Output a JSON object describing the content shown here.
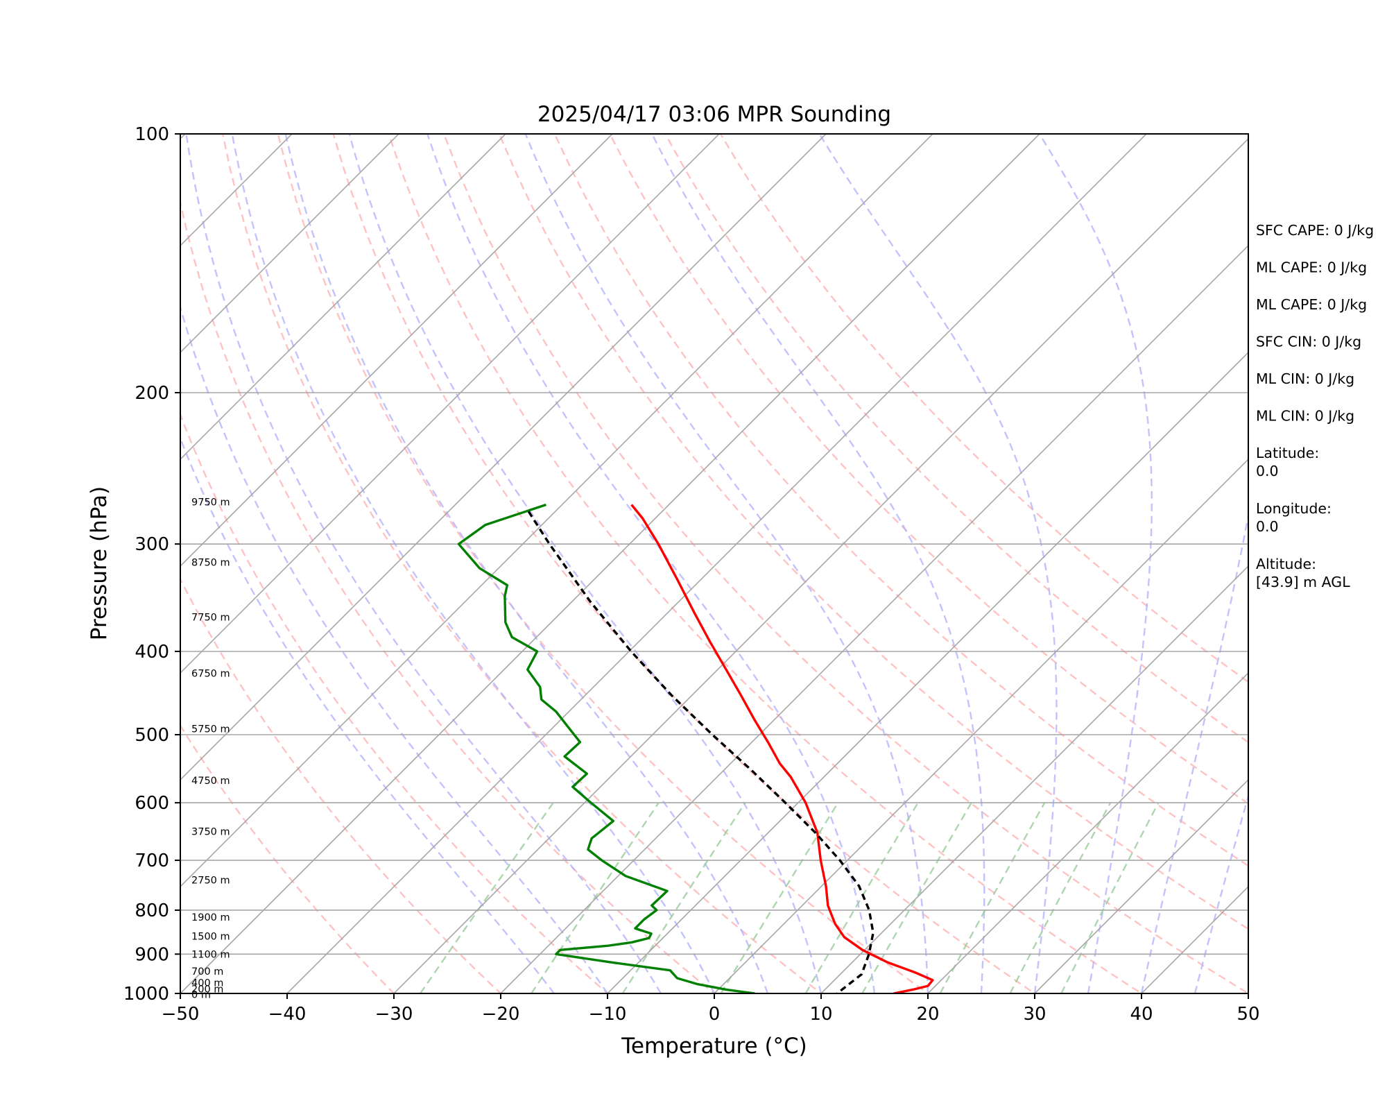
{
  "colors": {
    "temperature": "#ff0000",
    "dewpoint": "#008000",
    "parcel": "#000000",
    "isotherm": "#a6a6a6",
    "isobar": "#a6a6a6",
    "dry_adiabat": "#ffb3b3",
    "moist_adiabat": "#b3b3ff",
    "mixing_ratio": "#99cc99"
  },
  "chart_data": {
    "type": "line",
    "title": "2025/04/17 03:06 MPR Sounding",
    "xlabel": "Temperature (°C)",
    "ylabel": "Pressure (hPa)",
    "xlim": [
      -50,
      50
    ],
    "ylim": [
      1000,
      100
    ],
    "y_scale": "log",
    "skew": true,
    "grid": true,
    "x_ticks": [
      -50,
      -40,
      -30,
      -20,
      -10,
      0,
      10,
      20,
      30,
      40,
      50
    ],
    "x_tick_labels": [
      "−50",
      "−40",
      "−30",
      "−20",
      "−10",
      "0",
      "10",
      "20",
      "30",
      "40",
      "50"
    ],
    "y_ticks": [
      1000,
      900,
      800,
      700,
      600,
      500,
      400,
      300,
      200,
      100
    ],
    "y_tick_labels": [
      "1000",
      "900",
      "800",
      "700",
      "600",
      "500",
      "400",
      "300",
      "200",
      "100"
    ],
    "height_labels": [
      {
        "text": "9750 m",
        "p": 268
      },
      {
        "text": "8750 m",
        "p": 315
      },
      {
        "text": "7750 m",
        "p": 365
      },
      {
        "text": "6750 m",
        "p": 424
      },
      {
        "text": "5750 m",
        "p": 492
      },
      {
        "text": "4750 m",
        "p": 565
      },
      {
        "text": "3750 m",
        "p": 648
      },
      {
        "text": "2750 m",
        "p": 738
      },
      {
        "text": "1900 m",
        "p": 815
      },
      {
        "text": "1500 m",
        "p": 858
      },
      {
        "text": "1100 m",
        "p": 900
      },
      {
        "text": "700 m",
        "p": 942
      },
      {
        "text": "400 m",
        "p": 972
      },
      {
        "text": "200 m",
        "p": 988
      },
      {
        "text": "0 m",
        "p": 1003
      }
    ],
    "series": [
      {
        "name": "",
        "role": "temperature",
        "style": "solid",
        "p": [
          270,
          280,
          300,
          330,
          360,
          390,
          420,
          450,
          480,
          510,
          540,
          560,
          600,
          650,
          700,
          750,
          790,
          830,
          860,
          890,
          920,
          945,
          965,
          980,
          990,
          1000
        ],
        "t": [
          -53.5,
          -51.2,
          -47.3,
          -42.2,
          -37.6,
          -33.3,
          -29.2,
          -25.4,
          -21.9,
          -18.5,
          -15.4,
          -13.1,
          -9.3,
          -5.4,
          -2.5,
          0.4,
          2.4,
          4.8,
          6.9,
          9.8,
          13.3,
          16.8,
          19.2,
          19.3,
          18.2,
          16.8
        ]
      },
      {
        "name": "",
        "role": "dewpoint",
        "style": "solid",
        "p": [
          270,
          285,
          300,
          320,
          335,
          345,
          370,
          385,
          400,
          420,
          440,
          455,
          470,
          490,
          510,
          530,
          555,
          575,
          600,
          630,
          660,
          680,
          700,
          730,
          760,
          790,
          800,
          820,
          840,
          852,
          862,
          872,
          880,
          890,
          900,
          920,
          940,
          960,
          975,
          990,
          1000
        ],
        "t": [
          -61.5,
          -65.3,
          -66.0,
          -61.8,
          -57.6,
          -56.8,
          -54.3,
          -52.3,
          -48.6,
          -47.8,
          -45.0,
          -43.7,
          -41.2,
          -38.6,
          -36.1,
          -36.2,
          -32.5,
          -32.6,
          -29.4,
          -25.6,
          -26.0,
          -25.3,
          -23.0,
          -19.3,
          -14.0,
          -14.1,
          -13.2,
          -13.5,
          -13.5,
          -11.5,
          -11.3,
          -12.5,
          -14.4,
          -18.5,
          -18.5,
          -12.6,
          -6.3,
          -4.9,
          -2.5,
          0.8,
          3.8
        ]
      },
      {
        "name": "",
        "role": "parcel",
        "style": "dashed",
        "p": [
          275,
          300,
          350,
          400,
          450,
          500,
          550,
          600,
          650,
          700,
          750,
          800,
          850,
          900,
          950,
          1000
        ],
        "t": [
          -62.5,
          -57.5,
          -48.3,
          -39.8,
          -31.9,
          -24.4,
          -17.4,
          -11.2,
          -5.6,
          -0.7,
          3.5,
          6.7,
          9.2,
          10.8,
          12.0,
          11.5
        ]
      }
    ],
    "dry_adiabats_theta_c": [
      -30,
      -20,
      -10,
      0,
      10,
      20,
      30,
      40,
      50,
      60,
      70,
      80,
      90,
      100
    ],
    "moist_adiabats_tstart_c": [
      -15,
      -10,
      -5,
      0,
      5,
      10,
      15,
      20,
      25,
      30,
      35,
      40,
      45
    ],
    "mixing_ratios_gkg": [
      0.4,
      1.0,
      2.0,
      4.0,
      7.0,
      10.0,
      16.0,
      24.0,
      32.0
    ]
  },
  "info_panel": [
    {
      "lines": [
        "SFC CAPE: 0 J/kg"
      ]
    },
    {
      "lines": [
        "ML CAPE: 0 J/kg"
      ]
    },
    {
      "lines": [
        "ML CAPE: 0 J/kg"
      ]
    },
    {
      "lines": [
        "SFC CIN: 0 J/kg"
      ]
    },
    {
      "lines": [
        "ML CIN: 0 J/kg"
      ]
    },
    {
      "lines": [
        "ML CIN: 0 J/kg"
      ]
    },
    {
      "lines": [
        "Latitude:",
        "0.0"
      ]
    },
    {
      "lines": [
        "Longitude:",
        "0.0"
      ]
    },
    {
      "lines": [
        "Altitude:",
        "[43.9] m AGL"
      ]
    }
  ]
}
